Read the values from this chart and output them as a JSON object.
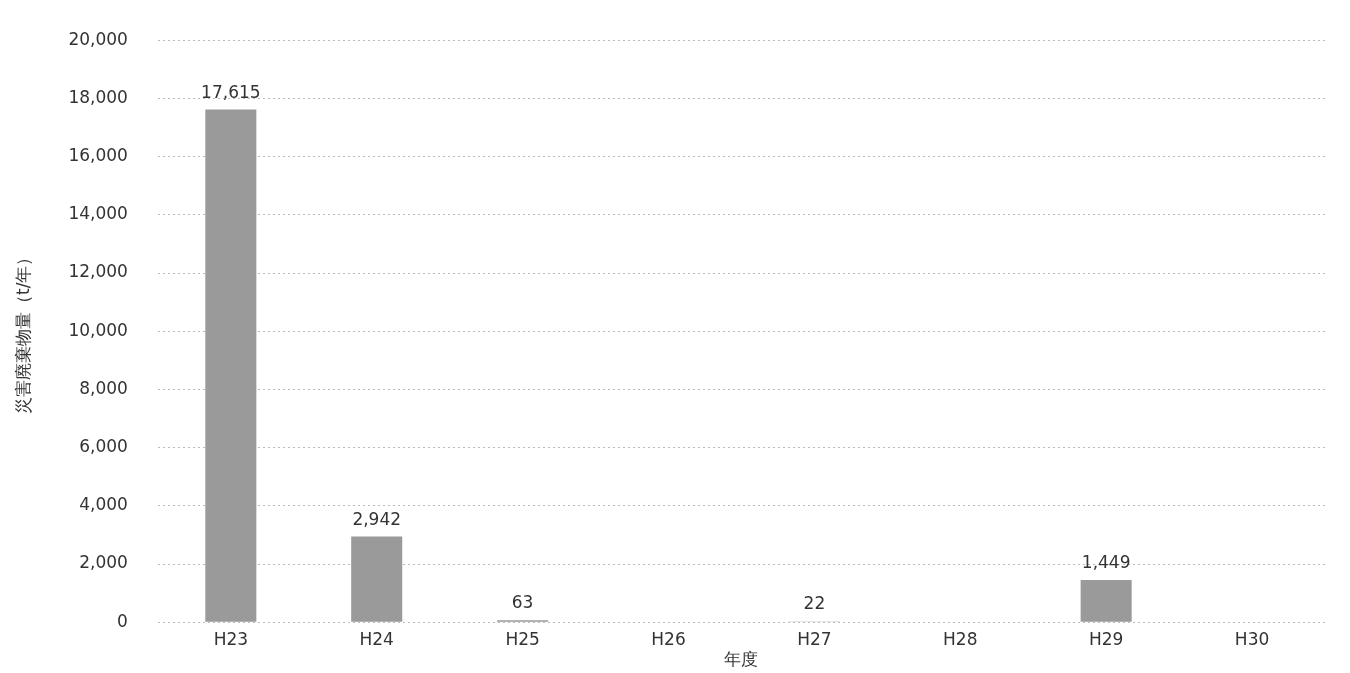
{
  "chart_data": {
    "type": "bar",
    "xlabel": "年度",
    "ylabel": "災害廃棄物量（t/年）",
    "categories": [
      "H23",
      "H24",
      "H25",
      "H26",
      "H27",
      "H28",
      "H29",
      "H30"
    ],
    "values": [
      17615,
      2942,
      63,
      null,
      22,
      null,
      1449,
      null
    ],
    "value_labels": [
      "17,615",
      "2,942",
      "63",
      null,
      "22",
      null,
      "1,449",
      null
    ],
    "color": "#9a9a9a",
    "ylim": [
      0,
      20000
    ],
    "yticks": [
      {
        "value": 0,
        "label": "0"
      },
      {
        "value": 2000,
        "label": "2,000"
      },
      {
        "value": 4000,
        "label": "4,000"
      },
      {
        "value": 6000,
        "label": "6,000"
      },
      {
        "value": 8000,
        "label": "8,000"
      },
      {
        "value": 10000,
        "label": "10,000"
      },
      {
        "value": 12000,
        "label": "12,000"
      },
      {
        "value": 14000,
        "label": "14,000"
      },
      {
        "value": 16000,
        "label": "16,000"
      },
      {
        "value": 18000,
        "label": "18,000"
      },
      {
        "value": 20000,
        "label": "20,000"
      }
    ],
    "grid": "y",
    "line_style": "dotted",
    "legend": false
  }
}
